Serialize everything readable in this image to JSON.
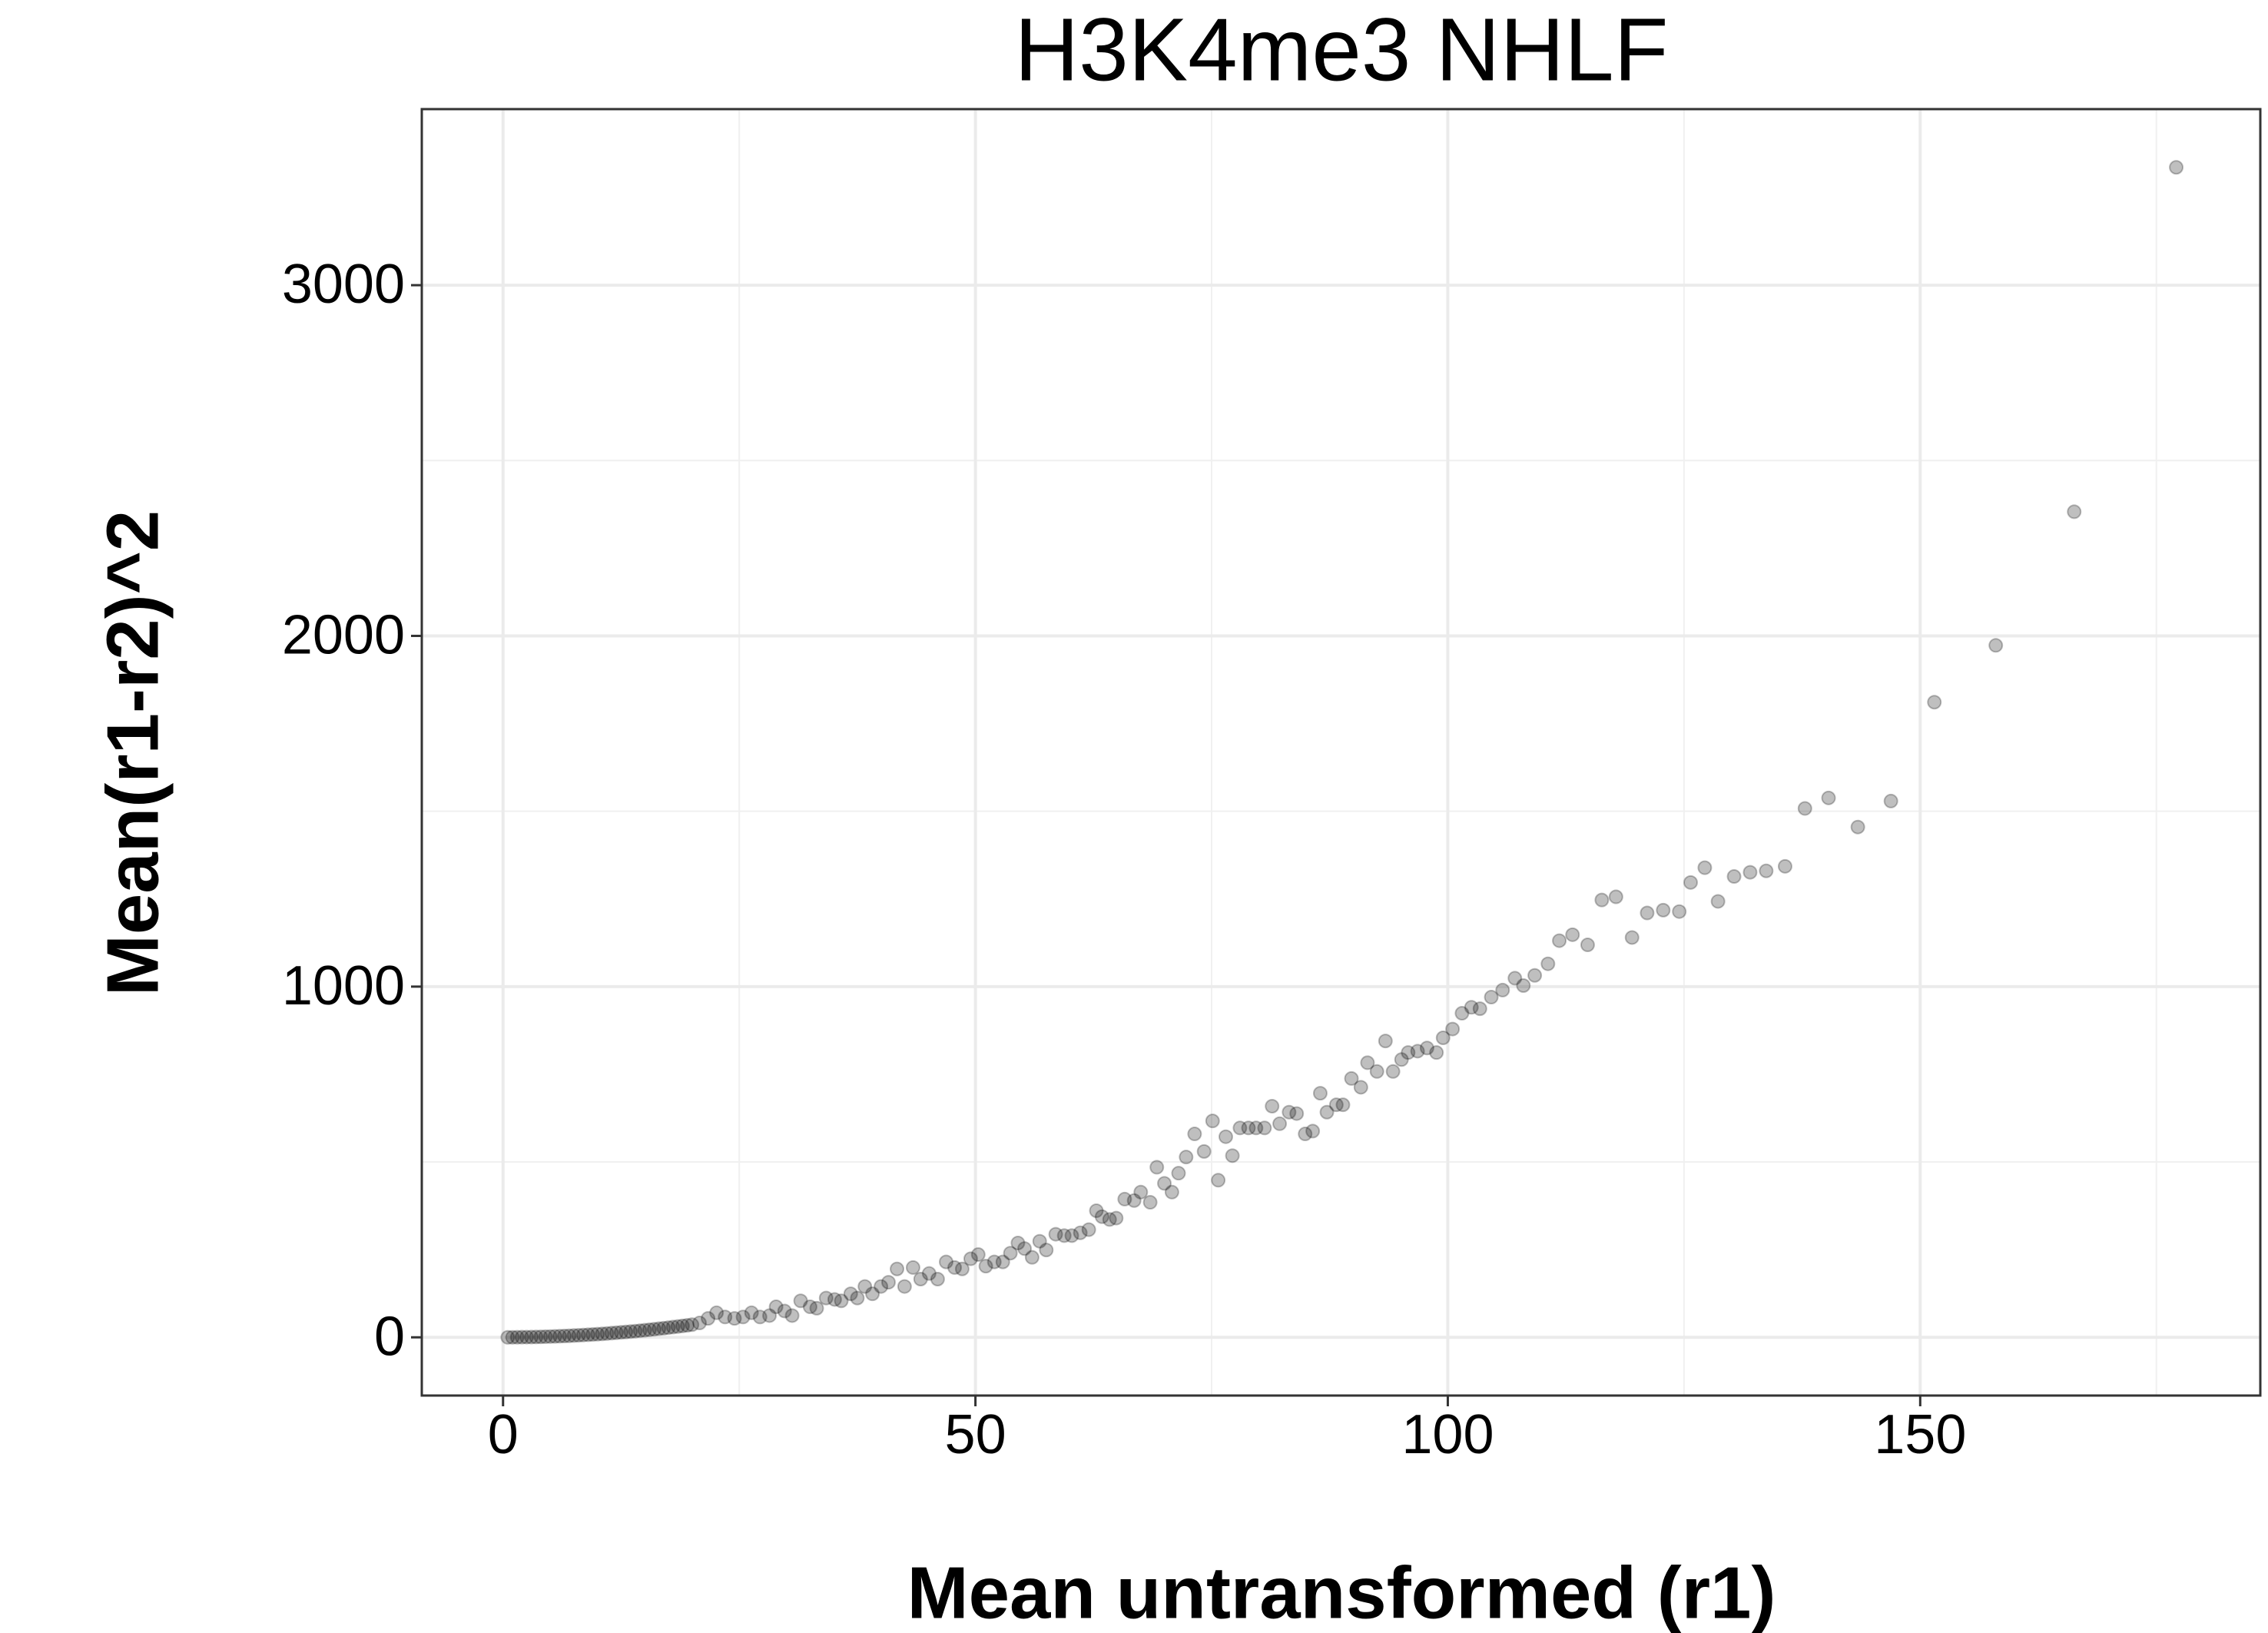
{
  "chart_data": {
    "type": "scatter",
    "title": "H3K4me3 NHLF",
    "x_label": "Mean untransformed (r1)",
    "y_label": "Mean(r1-r2)^2",
    "color": "#000000",
    "opacity": 0.25,
    "grid": true,
    "xlim": [
      -8.6,
      186
    ],
    "ylim": [
      -166,
      3502
    ],
    "xticks": [
      0,
      50,
      100,
      150
    ],
    "yticks": [
      0,
      1000,
      2000,
      3000
    ],
    "x_minor_grid": [
      25,
      75,
      125,
      175
    ],
    "y_minor_grid": [
      500,
      1500,
      2500
    ],
    "x": [
      177.1,
      166.3,
      158.0,
      151.5,
      146.9,
      143.4,
      140.3,
      137.8,
      135.7,
      133.7,
      132.0,
      130.3,
      128.6,
      127.2,
      125.7,
      124.5,
      122.8,
      121.1,
      119.5,
      117.8,
      116.3,
      114.8,
      113.2,
      111.8,
      110.6,
      109.2,
      108.0,
      107.1,
      105.8,
      104.6,
      103.4,
      102.5,
      101.5,
      100.5,
      99.5,
      98.8,
      97.8,
      96.8,
      95.8,
      95.1,
      94.2,
      93.4,
      92.5,
      91.5,
      90.8,
      89.8,
      88.9,
      88.2,
      87.2,
      86.5,
      85.7,
      84.9,
      84.0,
      83.2,
      82.2,
      81.4,
      80.6,
      79.7,
      78.9,
      78.0,
      77.2,
      76.5,
      75.7,
      75.1,
      74.2,
      73.2,
      72.3,
      71.5,
      70.8,
      70.0,
      69.2,
      68.5,
      67.5,
      66.8,
      65.8,
      64.9,
      64.2,
      63.4,
      62.8,
      62.0,
      61.1,
      60.2,
      59.4,
      58.5,
      57.5,
      56.8,
      56.0,
      55.2,
      54.5,
      53.7,
      52.9,
      52.0,
      51.1,
      50.3,
      49.5,
      48.6,
      47.8,
      46.9,
      46.0,
      45.1,
      44.2,
      43.4,
      42.5,
      41.7,
      40.8,
      40.0,
      39.1,
      38.3,
      37.5,
      36.8,
      35.8,
      35.1,
      34.2,
      33.2,
      32.5,
      31.5,
      30.6,
      29.8,
      28.9,
      28.2,
      27.2,
      26.3,
      25.4,
      24.5,
      23.5,
      22.6,
      21.7,
      20.8,
      20,
      19.5,
      19,
      18.5,
      18,
      17.5,
      17,
      16.5,
      16,
      15.5,
      15,
      14.5,
      14,
      13.5,
      13,
      12.5,
      12,
      11.5,
      11,
      10.5,
      10,
      9.5,
      9,
      8.5,
      8,
      7.5,
      7,
      6.5,
      6,
      5.5,
      5,
      4.5,
      4,
      3.5,
      3,
      2.5,
      2,
      1.5,
      1,
      0.5
    ],
    "values": [
      3336,
      2354,
      1973,
      1811,
      1529,
      1455,
      1538,
      1508,
      1343,
      1330,
      1326,
      1314,
      1243,
      1339,
      1297,
      1214,
      1218,
      1210,
      1140,
      1256,
      1247,
      1119,
      1148,
      1131,
      1065,
      1032,
      1003,
      1024,
      990,
      970,
      937,
      941,
      924,
      879,
      854,
      812,
      825,
      816,
      812,
      792,
      758,
      845,
      758,
      783,
      713,
      738,
      663,
      663,
      642,
      696,
      588,
      580,
      638,
      642,
      609,
      659,
      597,
      597,
      597,
      597,
      518,
      572,
      448,
      617,
      530,
      580,
      514,
      468,
      414,
      439,
      485,
      385,
      414,
      390,
      394,
      340,
      336,
      344,
      361,
      307,
      298,
      290,
      290,
      294,
      249,
      274,
      228,
      253,
      269,
      240,
      215,
      215,
      203,
      236,
      224,
      195,
      199,
      215,
      166,
      182,
      166,
      199,
      145,
      195,
      157,
      145,
      124,
      145,
      112,
      124,
      104,
      108,
      112,
      83,
      87,
      104,
      62,
      75,
      87,
      62,
      58,
      70,
      58,
      54,
      58,
      70,
      54,
      41,
      36.0,
      34.2,
      32.5,
      30.8,
      29.2,
      27.6,
      26.0,
      24.5,
      23.0,
      21.6,
      20.3,
      18.9,
      17.6,
      16.4,
      15.2,
      14.1,
      13.0,
      11.9,
      10.9,
      9.9,
      9.0,
      8.1,
      7.3,
      6.5,
      5.8,
      5.1,
      4.4,
      3.8,
      3.2,
      2.7,
      2.3,
      1.8,
      1.4,
      1.1,
      0.8,
      0.6,
      0.4,
      0.2,
      0.1,
      0
    ]
  }
}
